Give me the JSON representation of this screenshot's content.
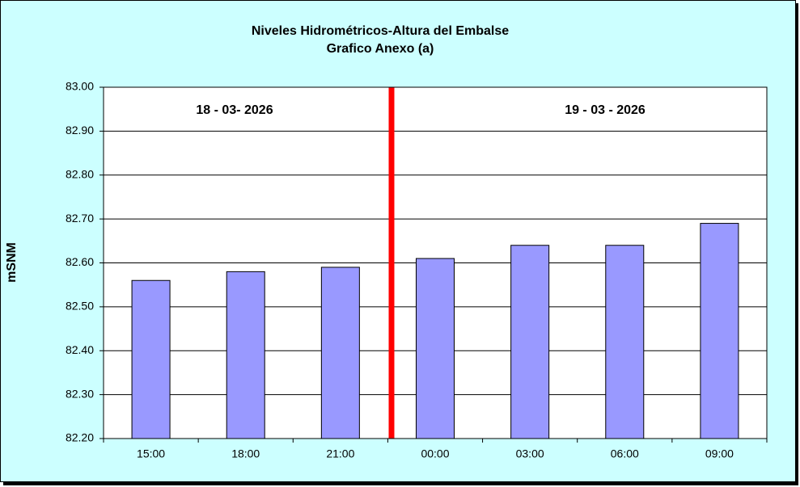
{
  "chart_data": {
    "type": "bar",
    "title": "Niveles Hidrométricos-Altura del Embalse",
    "subtitle": "Grafico Anexo (a)",
    "y_label": "mSNM",
    "annotations": [
      "18 - 03- 2026",
      "19 - 03 - 2026"
    ],
    "categories": [
      "15:00",
      "18:00",
      "21:00",
      "00:00",
      "03:00",
      "06:00",
      "09:00"
    ],
    "values": [
      82.56,
      82.58,
      82.59,
      82.61,
      82.64,
      82.64,
      82.69
    ],
    "color": "#9999ff",
    "ylim": [
      82.2,
      83.0
    ],
    "yticks": [
      {
        "value": 82.2,
        "label": "82.20"
      },
      {
        "value": 82.3,
        "label": "82.30"
      },
      {
        "value": 82.4,
        "label": "82.40"
      },
      {
        "value": 82.5,
        "label": "82.50"
      },
      {
        "value": 82.6,
        "label": "82.60"
      },
      {
        "value": 82.7,
        "label": "82.70"
      },
      {
        "value": 82.8,
        "label": "82.80"
      },
      {
        "value": 82.9,
        "label": "82.90"
      },
      {
        "value": 83.0,
        "label": "83.00"
      }
    ],
    "grid": true
  }
}
